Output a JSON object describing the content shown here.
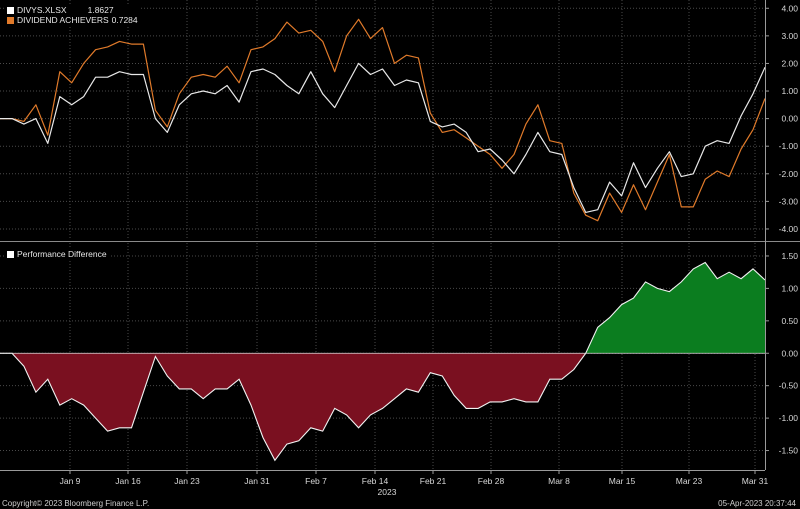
{
  "colors": {
    "background": "#000000",
    "grid": "#4a4a4a",
    "divys_line": "#e8e8e8",
    "achievers_line": "#e07a2a",
    "positive_fill": "#0b7d1f",
    "negative_fill": "#7a1020",
    "axis_text": "#d8d8d8"
  },
  "legend_top": [
    {
      "name": "DIVYS.XLSX",
      "value": "1.8627",
      "color": "#ffffff"
    },
    {
      "name": "DIVIDEND ACHIEVERS",
      "value": "0.7284",
      "color": "#e07a2a"
    }
  ],
  "legend_bottom": {
    "name": "Performance Difference",
    "color": "#ffffff"
  },
  "x_labels": [
    "Jan 9",
    "Jan 16",
    "Jan 23",
    "Jan 31",
    "Feb 7",
    "Feb 14",
    "Feb 21",
    "Feb 28",
    "Mar 8",
    "Mar 15",
    "Mar 23",
    "Mar 31"
  ],
  "x_year": "2023",
  "footer": {
    "copyright": "Copyright© 2023 Bloomberg Finance L.P.",
    "timestamp": "05-Apr-2023 20:37:44"
  },
  "chart_data": [
    {
      "type": "line",
      "y_ticks": [
        "4.00",
        "3.00",
        "2.00",
        "1.00",
        "0.00",
        "-1.00",
        "-2.00",
        "-3.00",
        "-4.00"
      ],
      "ylim": [
        -4.4,
        4.3
      ],
      "grid": true,
      "legend": "top-left",
      "series": [
        {
          "name": "DIVYS.XLSX",
          "values": [
            0,
            0,
            -0.2,
            0,
            -0.9,
            0.8,
            0.5,
            0.8,
            1.5,
            1.5,
            1.7,
            1.6,
            1.6,
            0,
            -0.5,
            0.5,
            0.9,
            1.0,
            0.9,
            1.2,
            0.6,
            1.7,
            1.8,
            1.6,
            1.2,
            0.9,
            1.7,
            0.9,
            0.4,
            1.2,
            2.0,
            1.6,
            1.8,
            1.2,
            1.4,
            1.3,
            -0.1,
            -0.3,
            -0.2,
            -0.5,
            -1.2,
            -1.1,
            -1.5,
            -2.0,
            -1.3,
            -0.5,
            -1.2,
            -1.3,
            -2.5,
            -3.4,
            -3.3,
            -2.3,
            -2.8,
            -1.6,
            -2.5,
            -1.8,
            -1.2,
            -2.1,
            -2.0,
            -1.0,
            -0.8,
            -0.9,
            0.1,
            0.9,
            1.86
          ]
        },
        {
          "name": "DIVIDEND ACHIEVERS",
          "values": [
            0,
            0,
            -0.1,
            0.5,
            -0.6,
            1.7,
            1.3,
            2.0,
            2.5,
            2.6,
            2.8,
            2.7,
            2.7,
            0.3,
            -0.3,
            0.9,
            1.5,
            1.6,
            1.5,
            1.9,
            1.3,
            2.5,
            2.6,
            2.9,
            3.5,
            3.1,
            3.2,
            2.8,
            1.7,
            3.0,
            3.6,
            2.9,
            3.3,
            2.0,
            2.3,
            2.2,
            0.2,
            -0.5,
            -0.4,
            -0.7,
            -1.0,
            -1.3,
            -1.8,
            -1.3,
            -0.2,
            0.5,
            -0.8,
            -0.9,
            -2.7,
            -3.5,
            -3.7,
            -2.7,
            -3.4,
            -2.4,
            -3.3,
            -2.3,
            -1.3,
            -3.2,
            -3.2,
            -2.2,
            -1.9,
            -2.1,
            -1.1,
            -0.4,
            0.73
          ]
        }
      ]
    },
    {
      "type": "area",
      "y_ticks": [
        "1.50",
        "1.00",
        "0.50",
        "0.00",
        "-0.50",
        "-1.00",
        "-1.50"
      ],
      "ylim": [
        -1.8,
        1.7
      ],
      "grid": true,
      "legend": "top-left",
      "series": [
        {
          "name": "Performance Difference",
          "values": [
            0,
            0,
            -0.2,
            -0.6,
            -0.4,
            -0.8,
            -0.7,
            -0.8,
            -1.0,
            -1.2,
            -1.15,
            -1.15,
            -0.6,
            -0.05,
            -0.35,
            -0.55,
            -0.55,
            -0.7,
            -0.55,
            -0.55,
            -0.4,
            -0.8,
            -1.3,
            -1.65,
            -1.4,
            -1.35,
            -1.15,
            -1.2,
            -0.85,
            -0.95,
            -1.15,
            -0.95,
            -0.85,
            -0.7,
            -0.55,
            -0.6,
            -0.3,
            -0.35,
            -0.65,
            -0.85,
            -0.85,
            -0.75,
            -0.75,
            -0.7,
            -0.75,
            -0.75,
            -0.4,
            -0.4,
            -0.25,
            0,
            0.4,
            0.55,
            0.75,
            0.85,
            1.1,
            1.0,
            0.95,
            1.1,
            1.3,
            1.4,
            1.15,
            1.25,
            1.15,
            1.3,
            1.13
          ]
        }
      ]
    }
  ]
}
